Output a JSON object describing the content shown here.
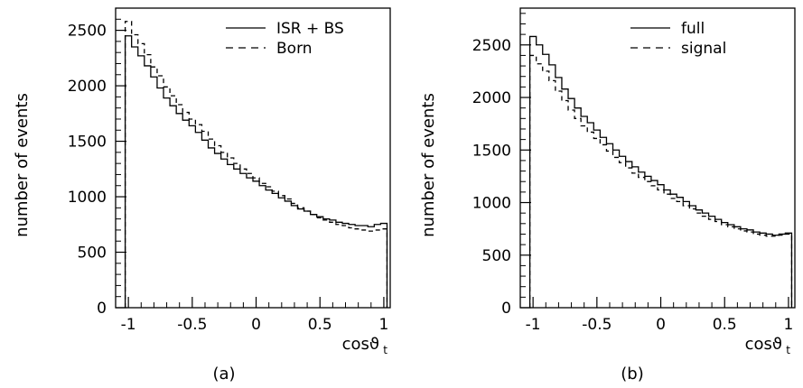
{
  "chart_data": [
    {
      "type": "line",
      "panel_label": "(a)",
      "xlabel": "cosϑ",
      "xlabel_sub": "t",
      "ylabel": "number of events",
      "xlim": [
        -1.1,
        1.05
      ],
      "ylim": [
        0,
        2700
      ],
      "xticks": [
        -1,
        -0.5,
        0,
        0.5,
        1
      ],
      "xtick_labels": [
        "-1",
        "-0.5",
        "0",
        "0.5",
        "1"
      ],
      "yticks": [
        0,
        500,
        1000,
        1500,
        2000,
        2500
      ],
      "ytick_labels": [
        "0",
        "500",
        "1000",
        "1500",
        "2000",
        "2500"
      ],
      "grid": false,
      "legend_position": "top-right",
      "x": [
        -1.0,
        -0.95,
        -0.9,
        -0.85,
        -0.8,
        -0.75,
        -0.7,
        -0.65,
        -0.6,
        -0.55,
        -0.5,
        -0.45,
        -0.4,
        -0.35,
        -0.3,
        -0.25,
        -0.2,
        -0.15,
        -0.1,
        -0.05,
        0.0,
        0.05,
        0.1,
        0.15,
        0.2,
        0.25,
        0.3,
        0.35,
        0.4,
        0.45,
        0.5,
        0.55,
        0.6,
        0.65,
        0.7,
        0.75,
        0.8,
        0.85,
        0.9,
        0.95,
        1.0
      ],
      "series": [
        {
          "name": "ISR + BS",
          "style": "solid",
          "values": [
            2450,
            2350,
            2270,
            2180,
            2080,
            1980,
            1890,
            1820,
            1750,
            1690,
            1640,
            1580,
            1510,
            1440,
            1390,
            1340,
            1290,
            1250,
            1210,
            1170,
            1140,
            1100,
            1060,
            1030,
            990,
            960,
            920,
            890,
            870,
            840,
            820,
            800,
            790,
            770,
            760,
            750,
            740,
            740,
            730,
            750,
            760
          ]
        },
        {
          "name": "Born",
          "style": "dashed",
          "values": [
            2580,
            2460,
            2380,
            2280,
            2170,
            2090,
            1990,
            1910,
            1830,
            1760,
            1700,
            1650,
            1590,
            1520,
            1460,
            1400,
            1350,
            1300,
            1250,
            1210,
            1170,
            1120,
            1090,
            1050,
            1010,
            980,
            940,
            900,
            870,
            840,
            810,
            790,
            770,
            750,
            740,
            720,
            710,
            700,
            690,
            700,
            710
          ]
        }
      ]
    },
    {
      "type": "line",
      "panel_label": "(b)",
      "xlabel": "cosϑ",
      "xlabel_sub": "t",
      "ylabel": "number of events",
      "xlim": [
        -1.1,
        1.05
      ],
      "ylim": [
        0,
        2850
      ],
      "xticks": [
        -1,
        -0.5,
        0,
        0.5,
        1
      ],
      "xtick_labels": [
        "-1",
        "-0.5",
        "0",
        "0.5",
        "1"
      ],
      "yticks": [
        0,
        500,
        1000,
        1500,
        2000,
        2500
      ],
      "ytick_labels": [
        "0",
        "500",
        "1000",
        "1500",
        "2000",
        "2500"
      ],
      "grid": false,
      "legend_position": "top-right",
      "x": [
        -1.0,
        -0.95,
        -0.9,
        -0.85,
        -0.8,
        -0.75,
        -0.7,
        -0.65,
        -0.6,
        -0.55,
        -0.5,
        -0.45,
        -0.4,
        -0.35,
        -0.3,
        -0.25,
        -0.2,
        -0.15,
        -0.1,
        -0.05,
        0.0,
        0.05,
        0.1,
        0.15,
        0.2,
        0.25,
        0.3,
        0.35,
        0.4,
        0.45,
        0.5,
        0.55,
        0.6,
        0.65,
        0.7,
        0.75,
        0.8,
        0.85,
        0.9,
        0.95,
        1.0
      ],
      "series": [
        {
          "name": "full",
          "style": "solid",
          "values": [
            2580,
            2500,
            2410,
            2310,
            2190,
            2080,
            1990,
            1900,
            1820,
            1760,
            1690,
            1620,
            1560,
            1500,
            1440,
            1390,
            1340,
            1290,
            1250,
            1210,
            1170,
            1120,
            1080,
            1050,
            1010,
            970,
            930,
            900,
            870,
            840,
            810,
            790,
            770,
            750,
            740,
            720,
            710,
            700,
            690,
            700,
            710
          ]
        },
        {
          "name": "signal",
          "style": "dashed",
          "values": [
            2400,
            2320,
            2250,
            2160,
            2060,
            1970,
            1880,
            1800,
            1730,
            1670,
            1610,
            1550,
            1490,
            1430,
            1380,
            1330,
            1280,
            1240,
            1200,
            1160,
            1120,
            1080,
            1040,
            1010,
            970,
            940,
            900,
            870,
            840,
            820,
            790,
            770,
            750,
            730,
            720,
            700,
            690,
            680,
            680,
            690,
            700
          ]
        }
      ]
    }
  ]
}
